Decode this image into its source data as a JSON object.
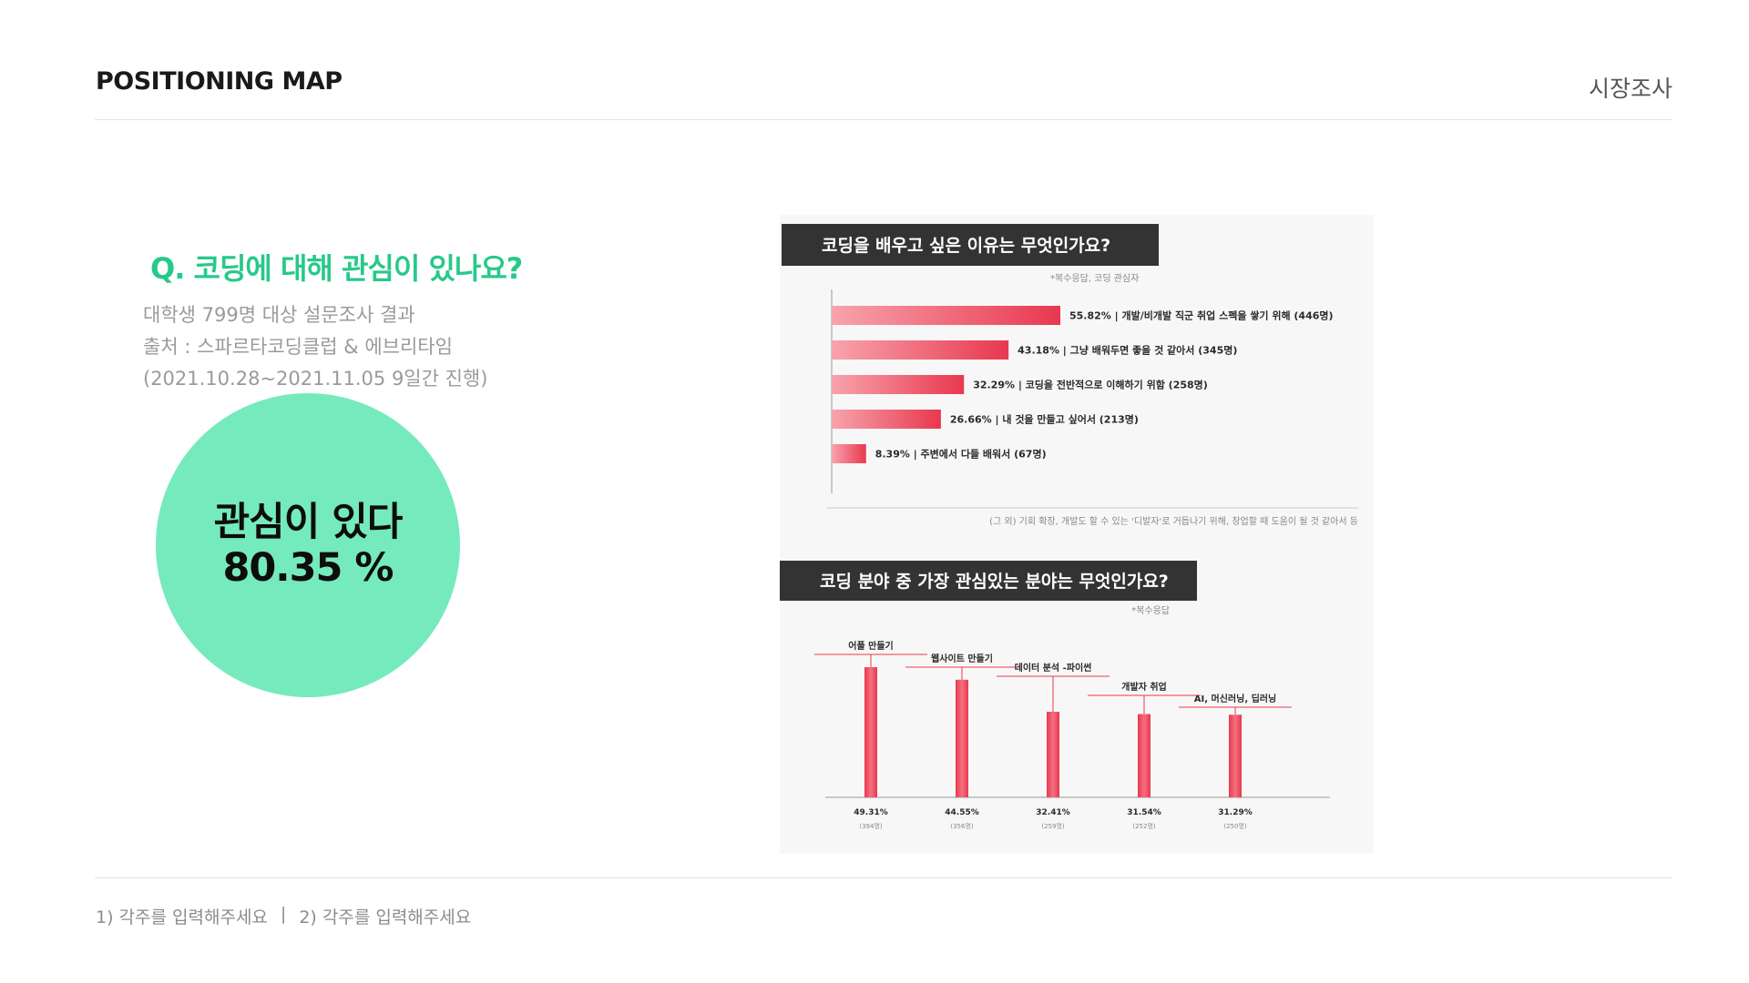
{
  "header": {
    "title": "POSITIONING MAP",
    "section": "시장조사"
  },
  "question": "Q. 코딩에 대해 관심이 있나요?",
  "survey": {
    "line1": "대학생 799명 대상 설문조사 결과",
    "line2": "출처 : 스파르타코딩클럽 & 에브리타임",
    "line3": "(2021.10.28~2021.11.05 9일간 진행)"
  },
  "highlight": {
    "label": "관심이 있다",
    "value": "80.35 %"
  },
  "footer": {
    "note1": "1) 각주를 입력해주세요",
    "divider": "|",
    "note2": "2) 각주를 입력해주세요"
  },
  "colors": {
    "accent_green": "#27c98a",
    "circle_fill": "#75eabd",
    "bar_red": "#e8384f",
    "title_bg": "#333333"
  },
  "chart_data": [
    {
      "type": "bar",
      "orientation": "horizontal",
      "title": "코딩을 배우고 싶은 이유는 무엇인가요?",
      "subtitle": "*복수응답, 코딩 관심자",
      "footnote": "(그 외) 기회 확장, 개발도 할 수 있는 '디발자'로 거듭나기 위해, 창업할 때 도움이 될 것 같아서 등",
      "unit": "%",
      "xlim": [
        0,
        55.82
      ],
      "categories": [
        "개발/비개발 직군 취업 스펙을 쌓기 위해 (446명)",
        "그냥 배워두면 좋을 것 같아서 (345명)",
        "코딩을 전반적으로 이해하기 위함 (258명)",
        "내 것을 만들고 싶어서 (213명)",
        "주변에서 다들 배워서 (67명)"
      ],
      "values": [
        55.82,
        43.18,
        32.29,
        26.66,
        8.39
      ],
      "value_labels": [
        "55.82%",
        "43.18%",
        "32.29%",
        "26.66%",
        "8.39%"
      ]
    },
    {
      "type": "bar",
      "orientation": "vertical",
      "title": "코딩 분야 중 가장 관심있는 분야는 무엇인가요?",
      "subtitle": "*복수응답",
      "unit": "%",
      "ylim": [
        0,
        49.31
      ],
      "categories": [
        "어플 만들기",
        "웹사이트 만들기",
        "데이터 분석 -파이썬",
        "개발자 취업",
        "AI, 머신러닝, 딥러닝"
      ],
      "values": [
        49.31,
        44.55,
        32.41,
        31.54,
        31.29
      ],
      "value_labels": [
        "49.31%",
        "44.55%",
        "32.41%",
        "31.54%",
        "31.29%"
      ],
      "counts": [
        "(394명)",
        "(356명)",
        "(259명)",
        "(252명)",
        "(250명)"
      ]
    }
  ]
}
